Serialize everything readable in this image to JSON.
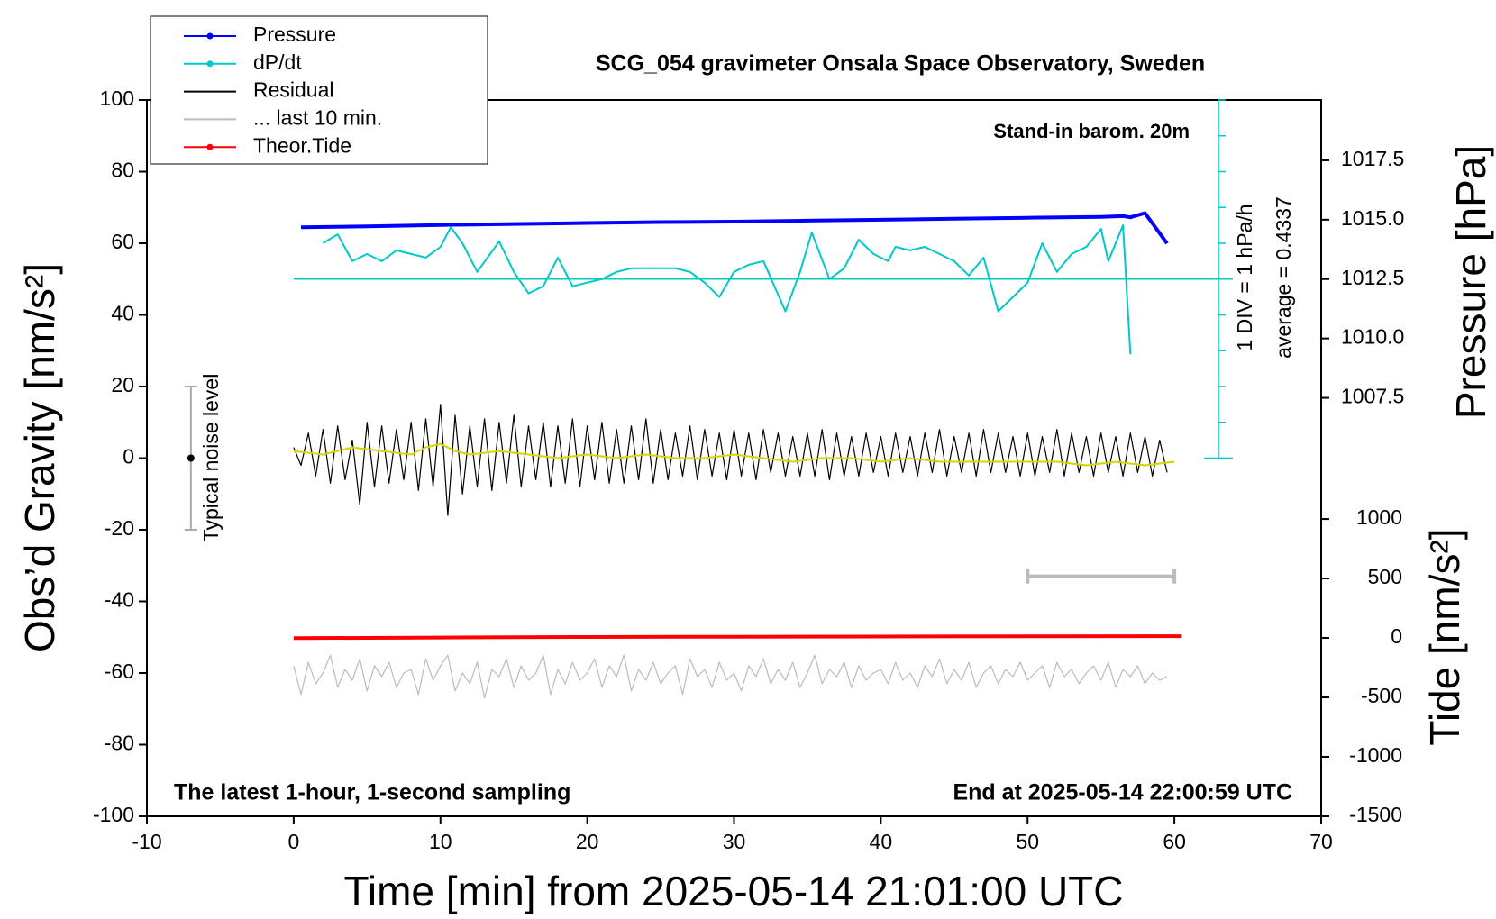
{
  "chart_data": {
    "type": "line",
    "title": "SCG_054 gravimeter Onsala Space Observatory, Sweden",
    "x_label": "Time [min] from 2025-05-14 21:01:00 UTC",
    "y_label": "Obs’d Gravity [nm/s²]",
    "y2_label": "Pressure [hPa]",
    "y3_label": "Tide [nm/s²]",
    "annotations": {
      "barometer": "Stand-in barom. 20m",
      "div": "1 DIV = 1 hPa/h",
      "average": "average = 0.4337",
      "noise": "Typical noise level",
      "sampling": "The latest 1-hour, 1-second sampling",
      "end": "End at 2025-05-14 22:00:59 UTC"
    },
    "xlim": [
      -10,
      70
    ],
    "xticks": [
      -10,
      0,
      10,
      20,
      30,
      40,
      50,
      60,
      70
    ],
    "ylim": [
      -100,
      100
    ],
    "yticks": [
      -100,
      -80,
      -60,
      -40,
      -20,
      0,
      20,
      40,
      60,
      80,
      100
    ],
    "y2lim": [
      989.88,
      1020.04
    ],
    "y2ticks": [
      1007.5,
      {
        "value": 1010,
        "label": "1010.0"
      },
      1012.5,
      {
        "value": 1015,
        "label": "1015.0"
      },
      1017.5
    ],
    "y3lim": [
      -1500,
      4524
    ],
    "y3ticks": [
      -1500,
      -1000,
      -500,
      0,
      500,
      1000
    ],
    "x": [
      0,
      0.5,
      1,
      1.5,
      2,
      2.5,
      3,
      3.5,
      4,
      4.5,
      5,
      5.5,
      6,
      6.5,
      7,
      7.5,
      8,
      8.5,
      9,
      9.5,
      10,
      10.5,
      11,
      11.5,
      12,
      12.5,
      13,
      13.5,
      14,
      14.5,
      15,
      15.5,
      16,
      16.5,
      17,
      17.5,
      18,
      18.5,
      19,
      19.5,
      20,
      20.5,
      21,
      21.5,
      22,
      22.5,
      23,
      23.5,
      24,
      24.5,
      25,
      25.5,
      26,
      26.5,
      27,
      27.5,
      28,
      28.5,
      29,
      29.5,
      30,
      30.5,
      31,
      31.5,
      32,
      32.5,
      33,
      33.5,
      34,
      34.5,
      35,
      35.5,
      36,
      36.5,
      37,
      37.5,
      38,
      38.5,
      39,
      39.5,
      40,
      40.5,
      41,
      41.5,
      42,
      42.5,
      43,
      43.5,
      44,
      44.5,
      45,
      45.5,
      46,
      46.5,
      47,
      47.5,
      48,
      48.5,
      49,
      49.5,
      50,
      50.5,
      51,
      51.5,
      52,
      52.5,
      53,
      53.5,
      54,
      54.5,
      55,
      55.5,
      56,
      56.5,
      57,
      57.5,
      58,
      58.5,
      59,
      59.5
    ],
    "series": [
      {
        "name": "Pressure",
        "color": "#0000ff",
        "axis": "y2",
        "marker": true,
        "x": [
          0.5,
          5,
          10,
          15,
          20,
          25,
          30,
          35,
          40,
          45,
          50,
          55,
          56.5,
          57,
          58,
          59.5
        ],
        "values": [
          1014.68,
          1014.72,
          1014.78,
          1014.82,
          1014.86,
          1014.9,
          1014.92,
          1014.96,
          1015.0,
          1015.04,
          1015.08,
          1015.12,
          1015.15,
          1015.1,
          1015.28,
          1014.0
        ]
      },
      {
        "name": "dP/dt",
        "color": "#00c8c8",
        "marker": true,
        "x": [
          2,
          3,
          4,
          5,
          6,
          7,
          8,
          9,
          10,
          10.7,
          11.5,
          12.5,
          14,
          15,
          16,
          17,
          18,
          19,
          20,
          21,
          22,
          23,
          24,
          25,
          26,
          27,
          28,
          29,
          30,
          31,
          32,
          33.5,
          34.5,
          35.3,
          36.5,
          37.5,
          38.5,
          39.5,
          40.5,
          41,
          42,
          43,
          44,
          45,
          46,
          47,
          48,
          49,
          50,
          51,
          52,
          53,
          54,
          55,
          55.5,
          56.5,
          57
        ],
        "values": [
          60,
          62.5,
          55,
          57,
          55,
          58,
          57,
          56,
          59,
          64.5,
          60,
          52,
          60.5,
          52,
          46,
          48,
          56,
          48,
          49,
          50,
          52,
          53,
          53,
          53,
          53,
          52,
          49,
          45,
          52,
          54,
          55,
          41,
          52,
          63,
          50,
          53,
          61,
          57,
          55,
          59,
          58,
          59,
          57,
          55,
          51,
          56,
          41,
          45,
          49,
          60,
          52,
          57,
          59,
          64,
          55,
          65,
          29
        ]
      },
      {
        "name": "Residual",
        "color": "#000000",
        "values": [
          3,
          -2,
          7,
          -5,
          8,
          -7,
          9,
          -6,
          5,
          -13,
          10,
          -8,
          9,
          -7,
          8,
          -6,
          10,
          -9,
          11,
          -8,
          15,
          -16,
          12,
          -10,
          9,
          -8,
          11,
          -9,
          10,
          -7,
          12,
          -8,
          9,
          -6,
          10,
          -8,
          9,
          -7,
          11,
          -8,
          9,
          -6,
          10,
          -7,
          8,
          -7,
          9,
          -6,
          11,
          -7,
          8,
          -6,
          7,
          -5,
          9,
          -6,
          8,
          -5,
          7,
          -6,
          8,
          -5,
          7,
          -6,
          8,
          -4,
          7,
          -5,
          6,
          -5,
          7,
          -5,
          8,
          -6,
          7,
          -5,
          6,
          -5,
          7,
          -4,
          6,
          -5,
          7,
          -4,
          6,
          -5,
          7,
          -4,
          8,
          -5,
          6,
          -4,
          7,
          -5,
          8,
          -4,
          7,
          -4,
          6,
          -5,
          7,
          -5,
          6,
          -4,
          8,
          -5,
          7,
          -4,
          6,
          -5,
          7,
          -4,
          6,
          -5,
          7,
          -4,
          6,
          -5,
          5,
          -4
        ]
      },
      {
        "color": "#d4d400",
        "x": [
          0,
          2,
          4,
          6,
          8,
          9,
          10,
          11,
          12,
          14,
          16,
          18,
          20,
          22,
          24,
          26,
          28,
          30,
          32,
          34,
          36,
          38,
          40,
          42,
          44,
          46,
          48,
          50,
          52,
          54,
          56,
          58,
          60
        ],
        "values": [
          2,
          1,
          3,
          2,
          1,
          3,
          4,
          2,
          1,
          2,
          1,
          0,
          1,
          0,
          1,
          0,
          0,
          1,
          0,
          -1,
          0,
          0,
          -1,
          0,
          -1,
          -1,
          -1,
          -1,
          -1,
          -2,
          -1,
          -2,
          -1
        ]
      },
      {
        "name": "... last 10 min.",
        "color": "#bbbbbb",
        "values": [
          -58,
          -66,
          -57,
          -63,
          -60,
          -55,
          -64,
          -59,
          -62,
          -56,
          -65,
          -58,
          -61,
          -57,
          -64,
          -60,
          -59,
          -66,
          -56,
          -62,
          -58,
          -55,
          -65,
          -60,
          -63,
          -57,
          -67,
          -59,
          -61,
          -56,
          -64,
          -58,
          -62,
          -60,
          -55,
          -66,
          -59,
          -63,
          -57,
          -62,
          -60,
          -56,
          -64,
          -58,
          -61,
          -55,
          -65,
          -59,
          -62,
          -57,
          -63,
          -60,
          -58,
          -66,
          -56,
          -61,
          -59,
          -64,
          -57,
          -62,
          -60,
          -65,
          -58,
          -61,
          -56,
          -63,
          -59,
          -62,
          -57,
          -64,
          -60,
          -55,
          -63,
          -59,
          -61,
          -57,
          -64,
          -58,
          -62,
          -60,
          -59,
          -63,
          -57,
          -62,
          -60,
          -64,
          -58,
          -61,
          -56,
          -63,
          -59,
          -62,
          -57,
          -64,
          -60,
          -58,
          -63,
          -59,
          -61,
          -57,
          -62,
          -60,
          -58,
          -64,
          -57,
          -61,
          -59,
          -63,
          -60,
          -58,
          -62,
          -57,
          -64,
          -59,
          -61,
          -58,
          -63,
          -60,
          -62,
          -61
        ]
      },
      {
        "name": "Theor.Tide",
        "color": "#ff0000",
        "axis": "y3",
        "marker": true,
        "x": [
          0,
          10,
          20,
          30,
          40,
          50,
          60.5
        ],
        "values": [
          -2,
          3,
          8,
          10,
          12,
          14,
          15
        ]
      }
    ],
    "dpdt_scale": {
      "x": 63,
      "ticks": [
        0,
        10,
        20,
        30,
        40,
        50,
        60,
        70,
        80,
        90,
        100
      ],
      "average_line": 50
    },
    "span_bar": {
      "x": [
        50,
        60
      ],
      "y": -33
    },
    "noise_bar": {
      "x": -7,
      "value": 0,
      "error": 20
    }
  }
}
